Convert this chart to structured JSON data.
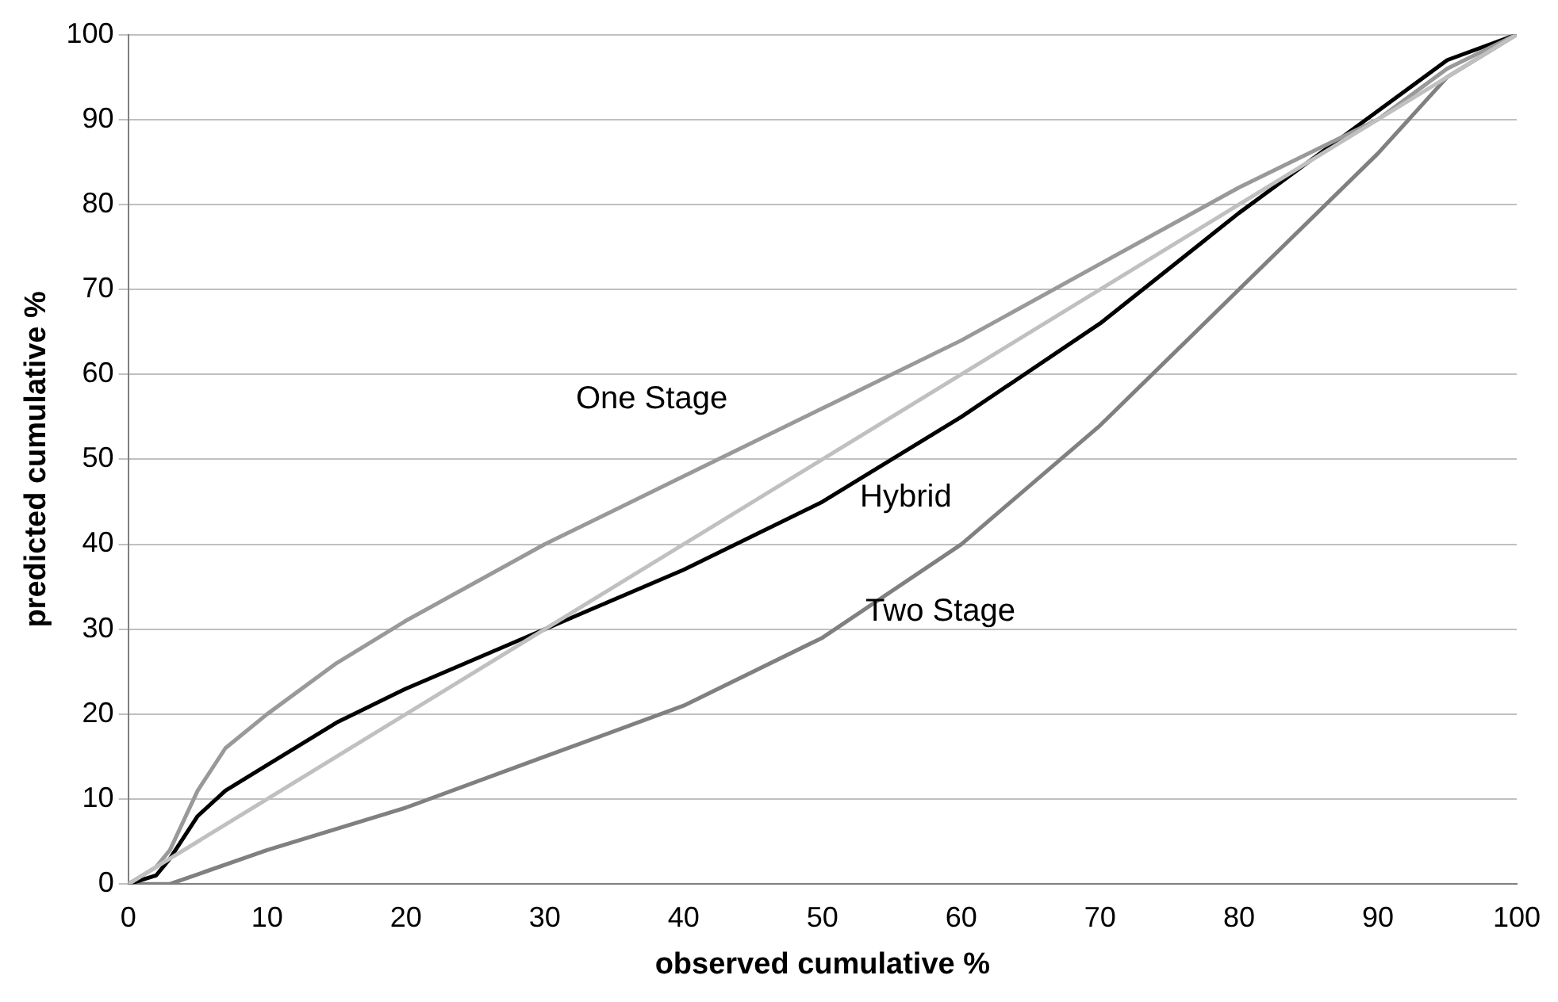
{
  "chart_data": {
    "type": "line",
    "xlabel": "observed cumulative %",
    "ylabel": "predicted cumulative %",
    "series": [
      {
        "color": "#c0c0c0",
        "x": [
          0,
          100
        ],
        "values": [
          0,
          100
        ]
      },
      {
        "color": "#999999",
        "x": [
          0,
          2,
          3,
          5,
          7,
          10,
          15,
          20,
          30,
          40,
          50,
          60,
          70,
          80,
          90,
          95,
          100
        ],
        "values": [
          0,
          2,
          4,
          11,
          16,
          20,
          26,
          31,
          40,
          48,
          56,
          64,
          73,
          82,
          90,
          96,
          100
        ]
      },
      {
        "color": "#000000",
        "x": [
          0,
          2,
          3,
          5,
          7,
          10,
          15,
          20,
          30,
          40,
          50,
          60,
          70,
          80,
          85,
          90,
          95,
          100
        ],
        "values": [
          0,
          1,
          3,
          8,
          11,
          14,
          19,
          23,
          30,
          37,
          45,
          55,
          66,
          79,
          85,
          91,
          97,
          100
        ]
      },
      {
        "color": "#808080",
        "x": [
          0,
          3,
          10,
          20,
          30,
          40,
          50,
          60,
          70,
          80,
          90,
          95,
          100
        ],
        "values": [
          0,
          0,
          4,
          9,
          15,
          21,
          29,
          40,
          54,
          70,
          86,
          95,
          100
        ]
      }
    ],
    "xlim": [
      0,
      100
    ],
    "xticks": [
      0,
      10,
      20,
      30,
      40,
      50,
      60,
      70,
      80,
      90,
      100
    ],
    "ylim": [
      0,
      100
    ],
    "yticks": [
      0,
      10,
      20,
      30,
      40,
      50,
      60,
      70,
      80,
      90,
      100
    ],
    "grid": "y",
    "legend": false,
    "marker": "none",
    "line_style": "solid",
    "annotations": [
      "One Stage",
      "Hybrid",
      "Two Stage"
    ]
  }
}
